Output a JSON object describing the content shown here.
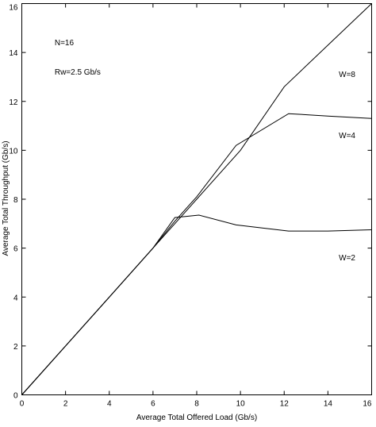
{
  "chart_data": {
    "type": "line",
    "xlabel": "Average Total Offered Load (Gb/s)",
    "ylabel": "Average Total Throughput (Gb/s)",
    "xlim": [
      0,
      16
    ],
    "ylim": [
      0,
      16
    ],
    "xticks": [
      0,
      2,
      4,
      6,
      8,
      10,
      12,
      14,
      16
    ],
    "yticks": [
      0,
      2,
      4,
      6,
      8,
      10,
      12,
      14,
      16
    ],
    "grid": false,
    "annotations": [
      {
        "text": "N=16",
        "x": 1.5,
        "y": 14.3
      },
      {
        "text": "Rw=2.5 Gb/s",
        "x": 1.5,
        "y": 13.1
      },
      {
        "text": "W=8",
        "x": 14.5,
        "y": 13.0
      },
      {
        "text": "W=4",
        "x": 14.5,
        "y": 10.5
      },
      {
        "text": "W=2",
        "x": 14.5,
        "y": 5.5
      }
    ],
    "series": [
      {
        "name": "W=8",
        "x": [
          0,
          2,
          4,
          6,
          8,
          10,
          12,
          14,
          16
        ],
        "y": [
          0,
          2,
          4,
          6,
          8,
          10,
          12.6,
          14.3,
          16
        ]
      },
      {
        "name": "W=4",
        "x": [
          0,
          2,
          4,
          6,
          7,
          8,
          9.8,
          12.2,
          14,
          16
        ],
        "y": [
          0,
          2,
          4,
          6,
          7.1,
          8.1,
          10.2,
          11.5,
          11.4,
          11.3
        ]
      },
      {
        "name": "W=2",
        "x": [
          0,
          2,
          4,
          6,
          7,
          8.1,
          9.8,
          12.2,
          14,
          16
        ],
        "y": [
          0,
          2,
          4,
          6,
          7.25,
          7.35,
          6.95,
          6.7,
          6.7,
          6.75
        ]
      }
    ]
  }
}
